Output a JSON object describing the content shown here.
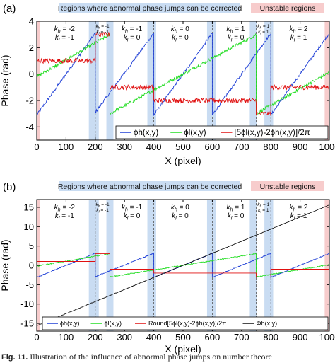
{
  "caption": {
    "label": "Fig. 11.",
    "text": "Illustration of the influence of abnormal phase jumps on number theore"
  },
  "colors": {
    "blue": "#1f3fd6",
    "green": "#22dd22",
    "red": "#e01010",
    "black": "#111111",
    "region_blue": "#c9dcf2",
    "region_pink": "#f7cccc"
  },
  "chart_data": [
    {
      "type": "line",
      "panel_label": "(a)",
      "xlabel": "X (pixel)",
      "ylabel": "Phase (rad)",
      "xlim": [
        0,
        1000
      ],
      "ylim": [
        -5,
        4
      ],
      "xticks": [
        0,
        100,
        200,
        300,
        400,
        500,
        600,
        700,
        800,
        900,
        1000
      ],
      "yticks": [
        -4,
        -2,
        0,
        2,
        4
      ],
      "banner_corrected": "Regions where abnormal phase jumps can be corrected",
      "banner_unstable": "Unstable regions",
      "correctable_regions": [
        [
          178,
          212
        ],
        [
          238,
          262
        ],
        [
          378,
          408
        ],
        [
          582,
          612
        ],
        [
          728,
          752
        ],
        [
          778,
          808
        ]
      ],
      "unstable_regions": [
        [
          0,
          12
        ],
        [
          984,
          1000
        ]
      ],
      "dashed_lines": [
        200,
        250,
        400,
        600,
        750,
        800
      ],
      "order_labels": [
        {
          "x": 95,
          "kh": "k_h = -2",
          "kl": "k_l = -1"
        },
        {
          "x": 225,
          "kh": "k_h = -1",
          "kl": "k_l = -1",
          "small": true
        },
        {
          "x": 325,
          "kh": "k_h = -1",
          "kl": "k_l = 0"
        },
        {
          "x": 490,
          "kh": "k_h = 0",
          "kl": "k_l = 0"
        },
        {
          "x": 680,
          "kh": "k_h = 1",
          "kl": "k_l = 0"
        },
        {
          "x": 775,
          "kh": "k_h = 1",
          "kl": "k_l = 1",
          "small": true
        },
        {
          "x": 895,
          "kh": "k_h = 2",
          "kl": "k_l = 1"
        }
      ],
      "legend": [
        "ϕh(x,y)",
        "ϕl(x,y)",
        "[5ϕl(x,y)-2ϕh(x,y)]/2π"
      ],
      "legend_position": "bottom-right",
      "series": [
        {
          "name": "ϕh(x,y)",
          "color": "blue",
          "noise": 0.1,
          "points": [
            [
              0,
              -3.1
            ],
            [
              200,
              3.1
            ],
            [
              200,
              -2.9
            ],
            [
              400,
              3.1
            ],
            [
              400,
              -3.1
            ],
            [
              600,
              3.1
            ],
            [
              600,
              -3.1
            ],
            [
              800,
              3.1
            ],
            [
              800,
              -3.1
            ],
            [
              1000,
              3.1
            ]
          ]
        },
        {
          "name": "ϕl(x,y)",
          "color": "green",
          "noise": 0.12,
          "points": [
            [
              0,
              -0.2
            ],
            [
              250,
              3.0
            ],
            [
              250,
              -3.0
            ],
            [
              750,
              3.0
            ],
            [
              750,
              -3.0
            ],
            [
              1000,
              0.15
            ]
          ]
        },
        {
          "name": "[5ϕl(x,y)-2ϕh(x,y)]/2π",
          "color": "red",
          "noise": 0.18,
          "points": [
            [
              0,
              1.0
            ],
            [
              200,
              1.0
            ],
            [
              200,
              3.0
            ],
            [
              250,
              3.0
            ],
            [
              250,
              -1.0
            ],
            [
              400,
              -1.0
            ],
            [
              400,
              -2.0
            ],
            [
              600,
              -2.0
            ],
            [
              600,
              -2.0
            ],
            [
              750,
              -2.0
            ],
            [
              750,
              -3.0
            ],
            [
              800,
              -3.0
            ],
            [
              800,
              -1.0
            ],
            [
              1000,
              -1.0
            ]
          ]
        }
      ]
    },
    {
      "type": "line",
      "panel_label": "(b)",
      "xlabel": "X (pixel)",
      "ylabel": "Phase (rad)",
      "xlim": [
        0,
        1000
      ],
      "ylim": [
        -17,
        17
      ],
      "xticks": [
        0,
        100,
        200,
        300,
        400,
        500,
        600,
        700,
        800,
        900,
        1000
      ],
      "yticks": [
        -15,
        -10,
        -5,
        0,
        5,
        10,
        15
      ],
      "banner_corrected": "Regions where abnormal phase jumps can be corrected",
      "banner_unstable": "Unstable regions",
      "correctable_regions": [
        [
          178,
          212
        ],
        [
          238,
          262
        ],
        [
          378,
          408
        ],
        [
          582,
          612
        ],
        [
          728,
          752
        ],
        [
          778,
          808
        ]
      ],
      "unstable_regions": [
        [
          0,
          12
        ],
        [
          984,
          1000
        ]
      ],
      "dashed_lines": [
        200,
        250,
        400,
        600,
        750,
        800
      ],
      "order_labels": [
        {
          "x": 95,
          "kh": "k_h = -2",
          "kl": "k_l = -1"
        },
        {
          "x": 225,
          "kh": "k_h = -1",
          "kl": "k_l = -1",
          "small": true
        },
        {
          "x": 325,
          "kh": "k_h = -1",
          "kl": "k_l = 0"
        },
        {
          "x": 490,
          "kh": "k_h = 0",
          "kl": "k_l = 0"
        },
        {
          "x": 680,
          "kh": "k_h = 1",
          "kl": "k_l = 0"
        },
        {
          "x": 775,
          "kh": "k_h = 1",
          "kl": "k_l = 1",
          "small": true
        },
        {
          "x": 895,
          "kh": "k_h = 2",
          "kl": "k_l = 1"
        }
      ],
      "legend": [
        "ϕh(x,y)",
        "ϕl(x,y)",
        "Round[5ϕl(x,y)-2ϕh(x,y)]/2π",
        "Φh(x,y)"
      ],
      "legend_position": "bottom-right",
      "series": [
        {
          "name": "ϕh(x,y)",
          "color": "blue",
          "noise": 0.1,
          "points": [
            [
              0,
              -3.1
            ],
            [
              200,
              3.1
            ],
            [
              200,
              -2.9
            ],
            [
              400,
              3.1
            ],
            [
              400,
              -3.1
            ],
            [
              600,
              3.1
            ],
            [
              600,
              -3.1
            ],
            [
              800,
              3.1
            ],
            [
              800,
              -3.1
            ],
            [
              1000,
              3.1
            ]
          ]
        },
        {
          "name": "ϕl(x,y)",
          "color": "green",
          "noise": 0.12,
          "points": [
            [
              0,
              -0.2
            ],
            [
              250,
              3.0
            ],
            [
              250,
              -3.0
            ],
            [
              750,
              3.0
            ],
            [
              750,
              -3.0
            ],
            [
              1000,
              0.15
            ]
          ]
        },
        {
          "name": "Round[5ϕl(x,y)-2ϕh(x,y)]/2π",
          "color": "red",
          "noise": 0,
          "points": [
            [
              0,
              1
            ],
            [
              200,
              1
            ],
            [
              200,
              3
            ],
            [
              250,
              3
            ],
            [
              250,
              -1
            ],
            [
              400,
              -1
            ],
            [
              400,
              -2
            ],
            [
              750,
              -2
            ],
            [
              750,
              -3
            ],
            [
              800,
              -3
            ],
            [
              800,
              -1
            ],
            [
              1000,
              -1
            ]
          ]
        },
        {
          "name": "Φh(x,y)",
          "color": "black",
          "noise": 0.05,
          "points": [
            [
              0,
              -15.6
            ],
            [
              1000,
              15.6
            ]
          ]
        }
      ]
    }
  ]
}
